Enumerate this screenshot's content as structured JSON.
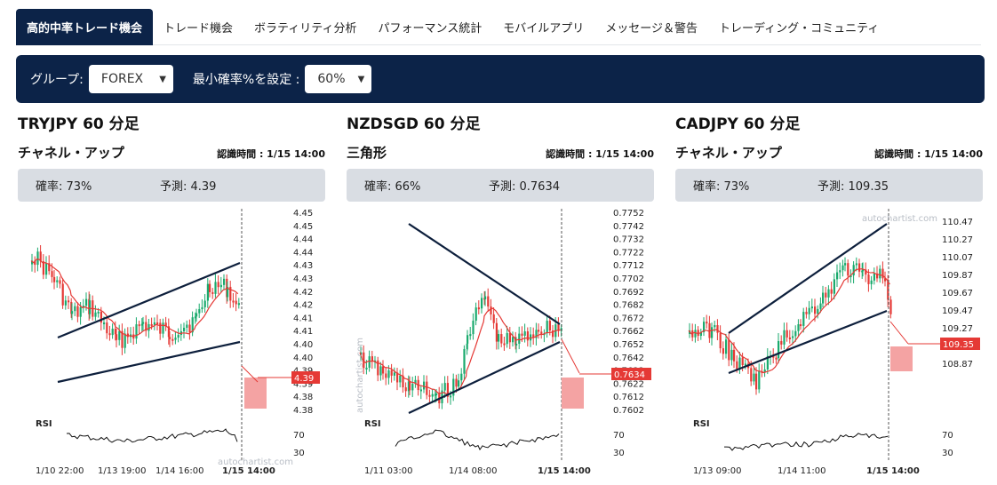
{
  "tabs": [
    {
      "label": "高的中率トレード機会"
    },
    {
      "label": "トレード機会"
    },
    {
      "label": "ボラティリティ分析"
    },
    {
      "label": "パフォーマンス統計"
    },
    {
      "label": "モバイルアプリ"
    },
    {
      "label": "メッセージ＆警告"
    },
    {
      "label": "トレーディング・コミュニティ"
    }
  ],
  "filters": {
    "group_label": "グループ:",
    "group_value": "FOREX",
    "min_prob_label": "最小確率%を設定 :",
    "min_prob_value": "60%"
  },
  "colors": {
    "navy": "#0c2348",
    "up": "#1aaa6d",
    "down": "#e53935",
    "forecast": "#f4a3a3",
    "trendline": "#0d1f3c"
  },
  "cards": [
    {
      "title": "TRYJPY 60 分足",
      "pattern": "チャネル・アップ",
      "identified": "認識時間 : 1/15 14:00",
      "probability": "確率: 73%",
      "forecast": "予測: 4.39",
      "price_axis": [
        "4.45",
        "4.45",
        "4.44",
        "4.44",
        "4.43",
        "4.43",
        "4.42",
        "4.42",
        "4.41",
        "4.41",
        "4.40",
        "4.40",
        "4.39",
        "4.39",
        "4.38",
        "4.38"
      ],
      "price_tag": "4.39",
      "rsi_label": "RSI",
      "rsi_levels": [
        "70",
        "30"
      ],
      "time_axis": [
        "1/10 22:00",
        "1/13 19:00",
        "1/14 16:00",
        "1/15 14:00"
      ],
      "watermark": "autochartist.com"
    },
    {
      "title": "NZDSGD 60 分足",
      "pattern": "三角形",
      "identified": "認識時間 : 1/15 14:00",
      "probability": "確率: 66%",
      "forecast": "予測: 0.7634",
      "price_axis": [
        "0.7752",
        "0.7742",
        "0.7732",
        "0.7722",
        "0.7712",
        "0.7702",
        "0.7692",
        "0.7682",
        "0.7672",
        "0.7662",
        "0.7652",
        "0.7642",
        "0.7632",
        "0.7622",
        "0.7612",
        "0.7602"
      ],
      "price_tag": "0.7634",
      "rsi_label": "RSI",
      "rsi_levels": [
        "70",
        "30"
      ],
      "time_axis": [
        "1/11 03:00",
        "1/14 08:00",
        "1/15 14:00"
      ],
      "watermark": "autochartist.com"
    },
    {
      "title": "CADJPY 60 分足",
      "pattern": "チャネル・アップ",
      "identified": "認識時間 : 1/15 14:00",
      "probability": "確率: 73%",
      "forecast": "予測: 109.35",
      "price_axis": [
        "110.47",
        "110.27",
        "110.07",
        "109.87",
        "109.67",
        "109.47",
        "109.27",
        "109.07",
        "108.87"
      ],
      "price_tag": "109.35",
      "rsi_label": "RSI",
      "rsi_levels": [
        "70",
        "30"
      ],
      "time_axis": [
        "1/13 09:00",
        "1/14 11:00",
        "1/15 14:00"
      ],
      "watermark": "autochartist.com"
    }
  ]
}
